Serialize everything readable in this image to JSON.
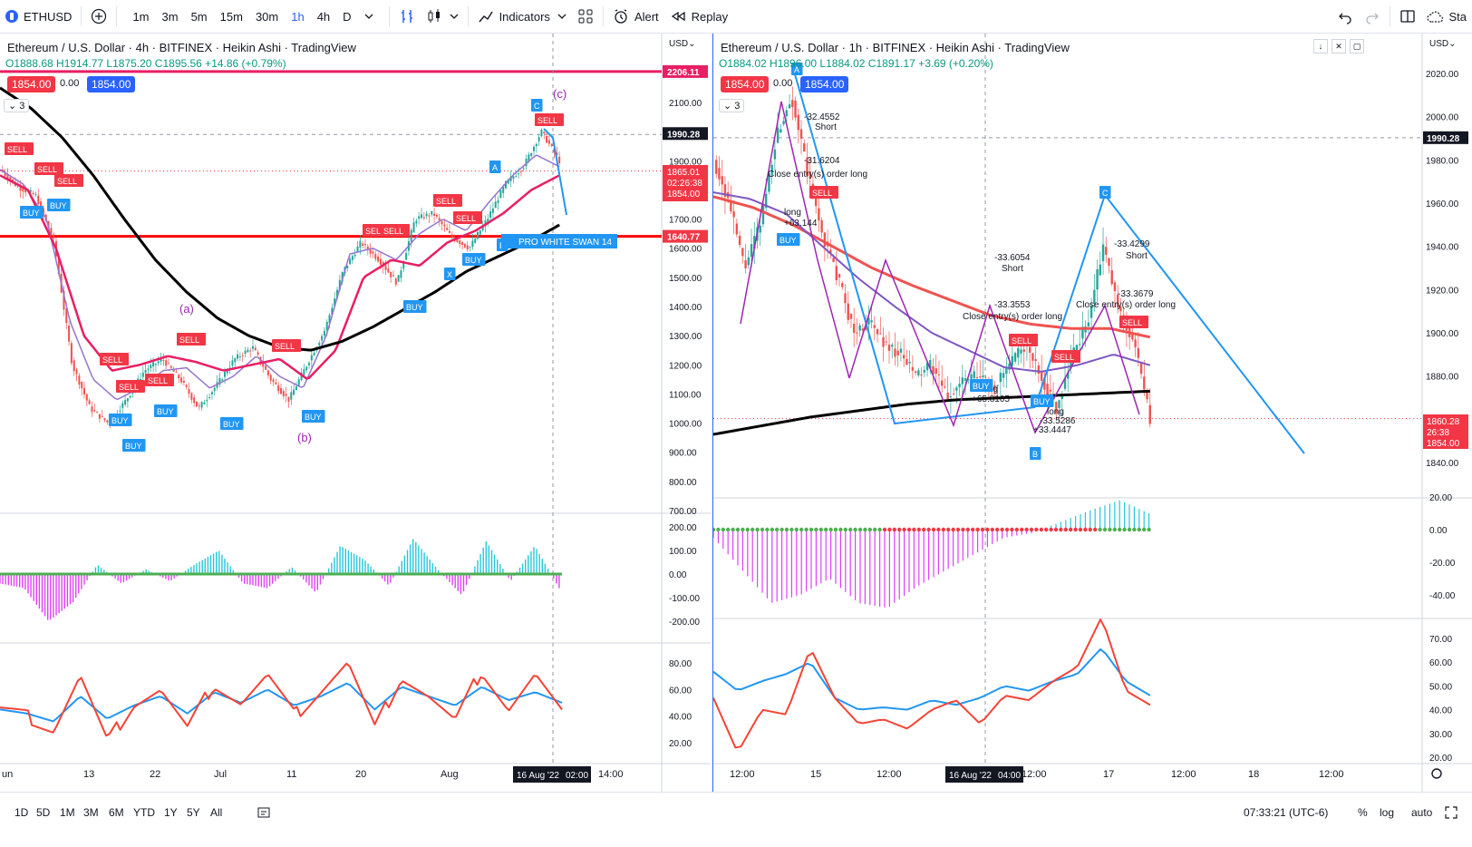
{
  "toolbar": {
    "symbol": "ETHUSD",
    "timeframes": [
      "1m",
      "3m",
      "5m",
      "15m",
      "30m",
      "1h",
      "4h",
      "D"
    ],
    "active_timeframe": "1h",
    "indicators_label": "Indicators",
    "alert_label": "Alert",
    "replay_label": "Replay",
    "right_truncated_label": "Sta"
  },
  "left_chart": {
    "title": "Ethereum / U.S. Dollar · 4h · BITFINEX · Heikin Ashi · TradingView",
    "ohlc": "O1888.68 H1914.77 L1875.20 C1895.56 +14.86 (+0.79%)",
    "sell_price": "1854.00",
    "spread": "0.00",
    "buy_price": "1854.00",
    "indicator_count": "3",
    "currency": "USD",
    "price_ticks": [
      "2100.00",
      "2000.00",
      "1900.00",
      "1800.00",
      "1700.00",
      "1600.00",
      "1500.00",
      "1400.00",
      "1300.00",
      "1200.00",
      "1100.00",
      "1000.00",
      "900.00",
      "800.00",
      "700.00"
    ],
    "tag_2206": "2206.11",
    "tag_1990": "1990.28",
    "tag_1865": "1865.01",
    "tag_countdown": "02:26:38",
    "tag_1854": "1854.00",
    "tag_1640": "1640.77",
    "osc_ticks": [
      "200.00",
      "100.00",
      "0.00",
      "-100.00",
      "-200.00"
    ],
    "rsi_ticks": [
      "80.00",
      "60.00",
      "40.00",
      "20.00"
    ],
    "time_labels": [
      "un",
      "13",
      "22",
      "Jul",
      "11",
      "20",
      "Aug"
    ],
    "time_cursor": "16 Aug '22",
    "time_cursor2": "02:00",
    "time_right": "14:00",
    "wave_labels": [
      "(a)",
      "(b)",
      "(c)"
    ],
    "pattern_label": "PRO WHITE SWAN 14"
  },
  "right_chart": {
    "title": "Ethereum / U.S. Dollar · 1h · BITFINEX · Heikin Ashi · TradingView",
    "ohlc": "O1884.02 H1896.00 L1884.02 C1891.17 +3.69 (+0.20%)",
    "sell_price": "1854.00",
    "spread": "0.00",
    "buy_price": "1854.00",
    "indicator_count": "3",
    "currency": "USD",
    "price_ticks": [
      "2020.00",
      "2000.00",
      "1980.00",
      "1960.00",
      "1940.00",
      "1920.00",
      "1900.00",
      "1880.00",
      "1860.00",
      "1840.00"
    ],
    "tag_1990": "1990.28",
    "tag_1860": "1860.28",
    "tag_countdown": "26:38",
    "tag_1854": "1854.00",
    "osc_ticks": [
      "20.00",
      "0.00",
      "-20.00",
      "-40.00"
    ],
    "rsi_ticks": [
      "70.00",
      "60.00",
      "50.00",
      "40.00",
      "30.00",
      "20.00"
    ],
    "time_labels": [
      "12:00",
      "15",
      "12:00",
      "12:00",
      "17",
      "12:00",
      "18",
      "12:00"
    ],
    "time_cursor": "16 Aug '22",
    "time_cursor2": "04:00",
    "annotations": [
      "-32.4552",
      "Short",
      "-31.6204",
      "Close entry(s) order long",
      "long",
      "+63.144",
      "-33.6054",
      "Short",
      "-33.3553",
      "Close entry(s) order long",
      "long",
      "+65.8105",
      "long",
      "-33.5286",
      "+33.4447",
      "-33.4299",
      "Short",
      "-33.3679",
      "Close entry(s) order long"
    ],
    "pattern_points": [
      "A",
      "B",
      "C"
    ]
  },
  "bottom": {
    "ranges": [
      "1D",
      "5D",
      "1M",
      "3M",
      "6M",
      "YTD",
      "1Y",
      "5Y",
      "All"
    ],
    "clock": "07:33:21 (UTC-6)",
    "percent": "%",
    "log": "log",
    "auto": "auto"
  },
  "colors": {
    "accent": "#2962ff",
    "sell": "#f23645",
    "buy": "#2196f3",
    "rsi_red": "#f44336",
    "rsi_blue": "#2196f3",
    "ema_black": "#000000",
    "hline_red": "#ff0000",
    "hline_pink": "#e91e63",
    "osc_teal": "#26c6da",
    "osc_magenta": "#e040fb"
  }
}
